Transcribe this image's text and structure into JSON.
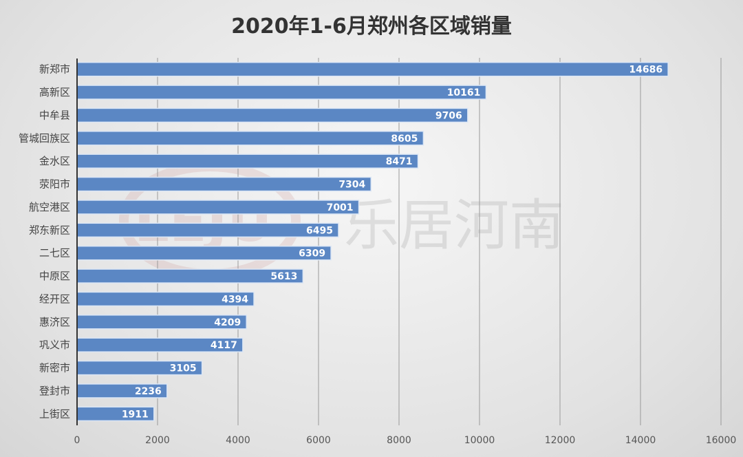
{
  "chart_data": {
    "type": "bar",
    "orientation": "horizontal",
    "title": "2020年1-6月郑州各区域销量",
    "categories": [
      "新郑市",
      "高新区",
      "中牟县",
      "管城回族区",
      "金水区",
      "荥阳市",
      "航空港区",
      "郑东新区",
      "二七区",
      "中原区",
      "经开区",
      "惠济区",
      "巩义市",
      "新密市",
      "登封市",
      "上街区"
    ],
    "values": [
      14686,
      10161,
      9706,
      8605,
      8471,
      7304,
      7001,
      6495,
      6309,
      5613,
      4394,
      4209,
      4117,
      3105,
      2236,
      1911
    ],
    "xlim": [
      0,
      16000
    ],
    "xticks": [
      "0",
      "2000",
      "4000",
      "6000",
      "8000",
      "10000",
      "12000",
      "14000",
      "16000"
    ],
    "grid": "vertical",
    "legend": "none",
    "bar_color": "#5b87c4",
    "data_labels": true
  },
  "watermark": {
    "logo": "LEJU",
    "text": "乐居河南"
  }
}
